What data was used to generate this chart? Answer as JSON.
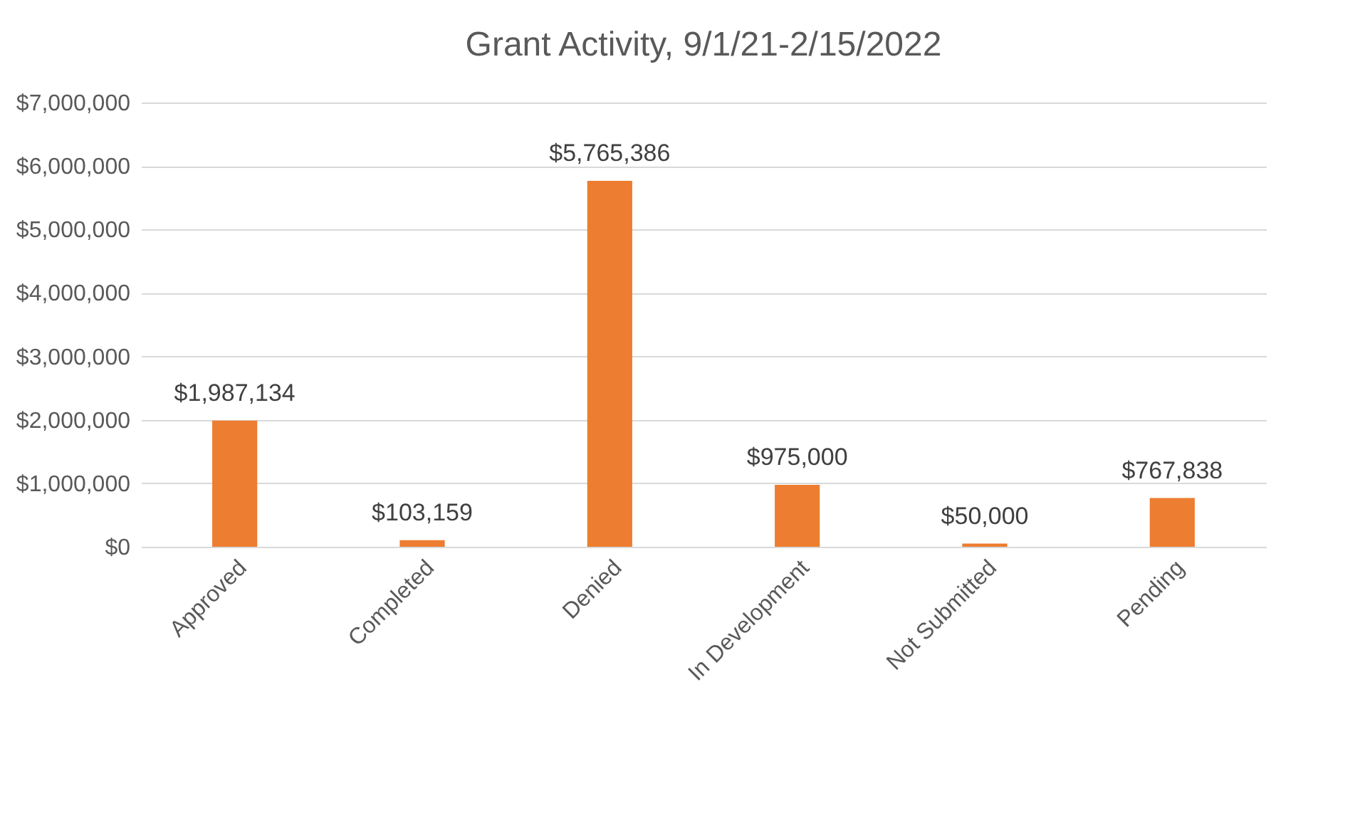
{
  "chart_data": {
    "type": "bar",
    "title": "Grant Activity, 9/1/21-2/15/2022",
    "categories": [
      "Approved",
      "Completed",
      "Denied",
      "In Development",
      "Not Submitted",
      "Pending"
    ],
    "values": [
      1987134,
      103159,
      5765386,
      975000,
      50000,
      767838
    ],
    "value_labels": [
      "$1,987,134",
      "$103,159",
      "$5,765,386",
      "$975,000",
      "$50,000",
      "$767,838"
    ],
    "color": "#ed7d31",
    "ylim": [
      0,
      7000000
    ],
    "yticks": [
      {
        "value": 0,
        "label": "$0"
      },
      {
        "value": 1000000,
        "label": "$1,000,000"
      },
      {
        "value": 2000000,
        "label": "$2,000,000"
      },
      {
        "value": 3000000,
        "label": "$3,000,000"
      },
      {
        "value": 4000000,
        "label": "$4,000,000"
      },
      {
        "value": 5000000,
        "label": "$5,000,000"
      },
      {
        "value": 6000000,
        "label": "$6,000,000"
      },
      {
        "value": 7000000,
        "label": "$7,000,000"
      }
    ],
    "grid": "y"
  }
}
